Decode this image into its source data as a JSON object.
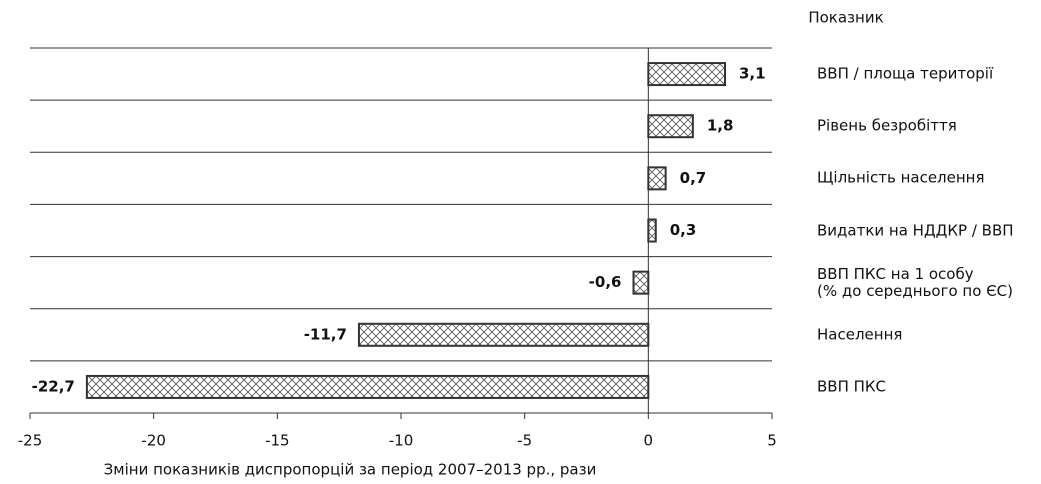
{
  "chart_data": {
    "type": "bar",
    "orientation": "horizontal",
    "category_label": "Показник",
    "xlabel": "Зміни показників диспропорцій за період 2007–2013 рр., рази",
    "categories": [
      "ВВП / площа території",
      "Рівень безробіття",
      "Щільність населення",
      "Видатки на НДДКР / ВВП",
      "ВВП ПКС на 1 особу\n(% до середнього по ЄС)",
      "Населення",
      "ВВП ПКС"
    ],
    "values": [
      3.1,
      1.8,
      0.7,
      0.3,
      -0.6,
      -11.7,
      -22.7
    ],
    "value_labels": [
      "3,1",
      "1,8",
      "0,7",
      "0,3",
      "-0,6",
      "-11,7",
      "-22,7"
    ],
    "color": "#333333",
    "xlim": [
      -25,
      5
    ],
    "xticks": [
      -25,
      -20,
      -15,
      -10,
      -5,
      0,
      5
    ]
  }
}
